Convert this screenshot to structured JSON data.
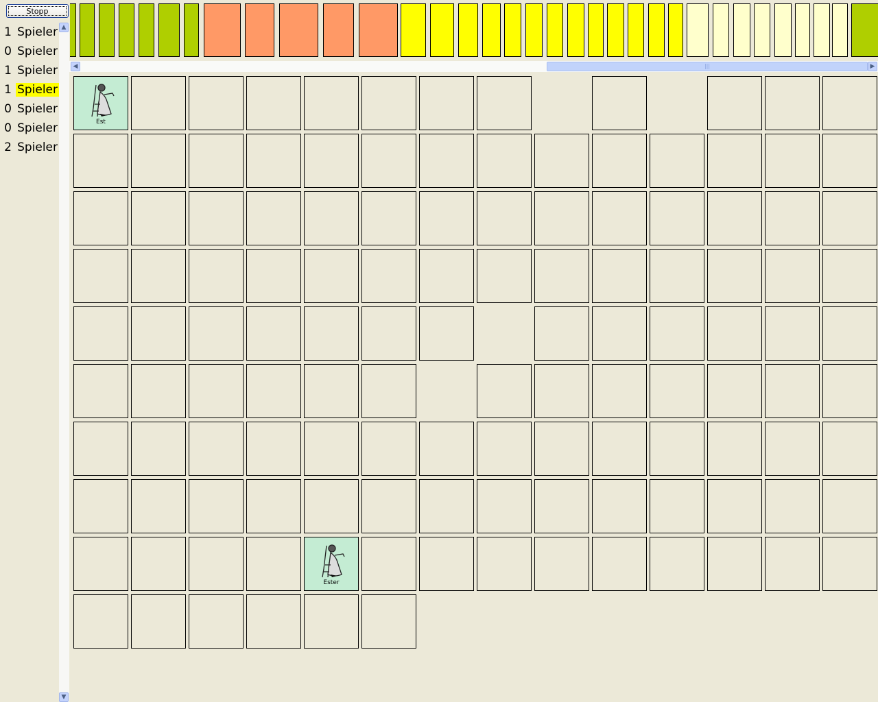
{
  "toolbar": {
    "stop_label": "Stopp"
  },
  "players": [
    {
      "count": "1",
      "label": "Spieler",
      "highlighted": false
    },
    {
      "count": "0",
      "label": "Spieler",
      "highlighted": false
    },
    {
      "count": "1",
      "label": "Spieler",
      "highlighted": false
    },
    {
      "count": "1",
      "label": "Spieler",
      "highlighted": true
    },
    {
      "count": "0",
      "label": "Spieler",
      "highlighted": false
    },
    {
      "count": "0",
      "label": "Spieler",
      "highlighted": false
    },
    {
      "count": "2",
      "label": "Spieler",
      "highlighted": false
    }
  ],
  "colors": {
    "green": "#afcf00",
    "orange": "#ff9966",
    "yellow": "#ffff00",
    "pale": "#ffffcc",
    "card": "#c4ecd3",
    "highlight": "#ffff00"
  },
  "color_bars": [
    "green",
    "green",
    "green",
    "green",
    "green",
    "green",
    "green",
    "orange",
    "orange",
    "orange",
    "orange",
    "orange",
    "yellow",
    "yellow",
    "yellow",
    "yellow",
    "yellow",
    "yellow",
    "yellow",
    "yellow",
    "yellow",
    "yellow",
    "yellow",
    "yellow",
    "yellow",
    "pale",
    "pale",
    "pale",
    "pale",
    "pale",
    "pale",
    "pale",
    "pale",
    "green"
  ],
  "grid": {
    "columns": 14,
    "total_cells": 132,
    "hidden_cells": [
      8,
      10,
      63,
      76
    ],
    "cards": [
      {
        "index": 0,
        "label": "Est",
        "icon": "woman-harp-icon"
      },
      {
        "index": 116,
        "label": "Ester",
        "icon": "woman-harp-icon"
      }
    ]
  }
}
